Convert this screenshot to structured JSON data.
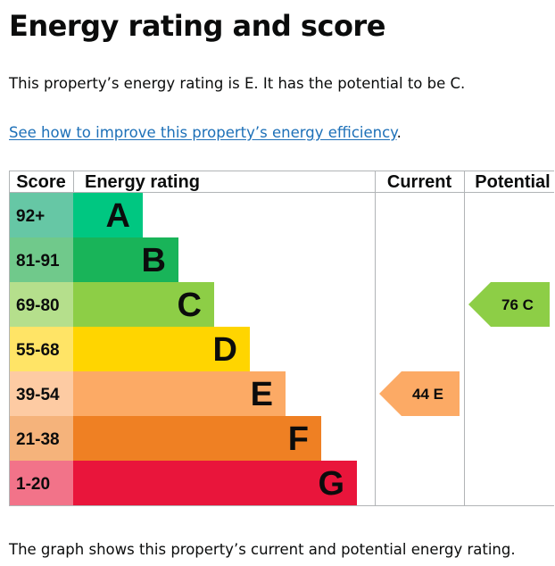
{
  "page": {
    "title": "Energy rating and score",
    "summary": "This property’s energy rating is E. It has the potential to be C.",
    "link_text": "See how to improve this property’s energy efficiency",
    "link_suffix": ".",
    "footer": "The graph shows this property’s current and potential energy rating."
  },
  "chart_data": {
    "type": "bar",
    "headers": {
      "score": "Score",
      "rating": "Energy rating",
      "current": "Current",
      "potential": "Potential"
    },
    "bands": [
      {
        "letter": "A",
        "score": "92+",
        "color": "#00c781",
        "score_color": "#66c7a5"
      },
      {
        "letter": "B",
        "score": "81-91",
        "color": "#19b459",
        "score_color": "#70c98b"
      },
      {
        "letter": "C",
        "score": "69-80",
        "color": "#8dce46",
        "score_color": "#b5df8c"
      },
      {
        "letter": "D",
        "score": "55-68",
        "color": "#ffd500",
        "score_color": "#ffe466"
      },
      {
        "letter": "E",
        "score": "39-54",
        "color": "#fcaa65",
        "score_color": "#fdcba3"
      },
      {
        "letter": "F",
        "score": "21-38",
        "color": "#ef8023",
        "score_color": "#f5b37b"
      },
      {
        "letter": "G",
        "score": "1-20",
        "color": "#e9153b",
        "score_color": "#f27389"
      }
    ],
    "current": {
      "value": 44,
      "letter": "E",
      "label": "44 E",
      "color": "#fcaa65"
    },
    "potential": {
      "value": 76,
      "letter": "C",
      "label": "76 C",
      "color": "#8dce46"
    }
  }
}
